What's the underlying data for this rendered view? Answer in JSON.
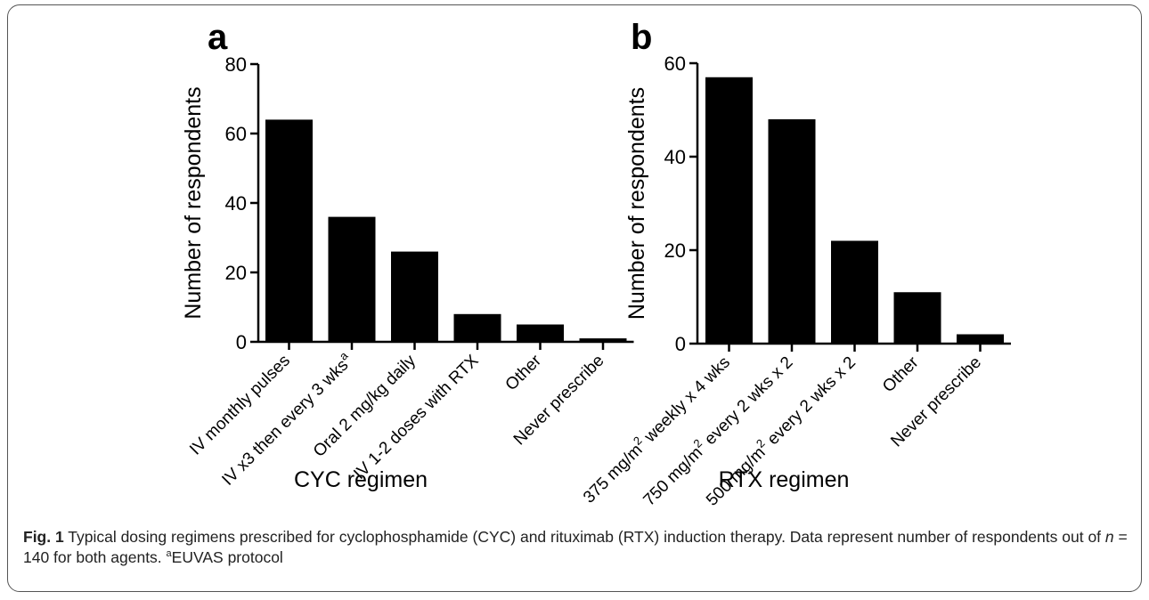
{
  "chart_data": [
    {
      "panel_label": "a",
      "type": "bar",
      "categories": [
        {
          "text": "IV monthly pulses",
          "sup": ""
        },
        {
          "text": "IV x3 then every 3 wks",
          "sup": "a"
        },
        {
          "text": "Oral 2 mg/kg daily",
          "sup": ""
        },
        {
          "text": "IV 1-2 doses with RTX",
          "sup": ""
        },
        {
          "text": "Other",
          "sup": ""
        },
        {
          "text": "Never prescribe",
          "sup": ""
        }
      ],
      "values": [
        64,
        36,
        26,
        8,
        5,
        1
      ],
      "xlabel": "CYC regimen",
      "ylabel": "Number of respondents",
      "ylim": [
        0,
        80
      ],
      "yticks": [
        0,
        20,
        40,
        60,
        80
      ],
      "grid": false,
      "bar_color": "#000000"
    },
    {
      "panel_label": "b",
      "type": "bar",
      "categories": [
        {
          "text": "375 mg/m",
          "sup": "2",
          "tail": " weekly x 4 wks"
        },
        {
          "text": "750 mg/m",
          "sup": "2",
          "tail": " every 2 wks x 2"
        },
        {
          "text": "500 mg/m",
          "sup": "2",
          "tail": " every 2 wks x 2"
        },
        {
          "text": "Other",
          "sup": ""
        },
        {
          "text": "Never prescribe",
          "sup": ""
        }
      ],
      "values": [
        57,
        48,
        22,
        11,
        2
      ],
      "xlabel": "RTX regimen",
      "ylabel": "Number of respondents",
      "ylim": [
        0,
        60
      ],
      "yticks": [
        0,
        20,
        40,
        60
      ],
      "grid": false,
      "bar_color": "#000000"
    }
  ],
  "caption": {
    "label": "Fig. 1",
    "text_1": " Typical dosing regimens prescribed for cyclophosphamide (CYC) and rituximab (RTX) induction therapy. Data represent number of respondents out of ",
    "n_symbol": "n",
    "text_2": " = 140 for both agents. ",
    "footnote_mark": "a",
    "footnote_text": "EUVAS protocol"
  }
}
